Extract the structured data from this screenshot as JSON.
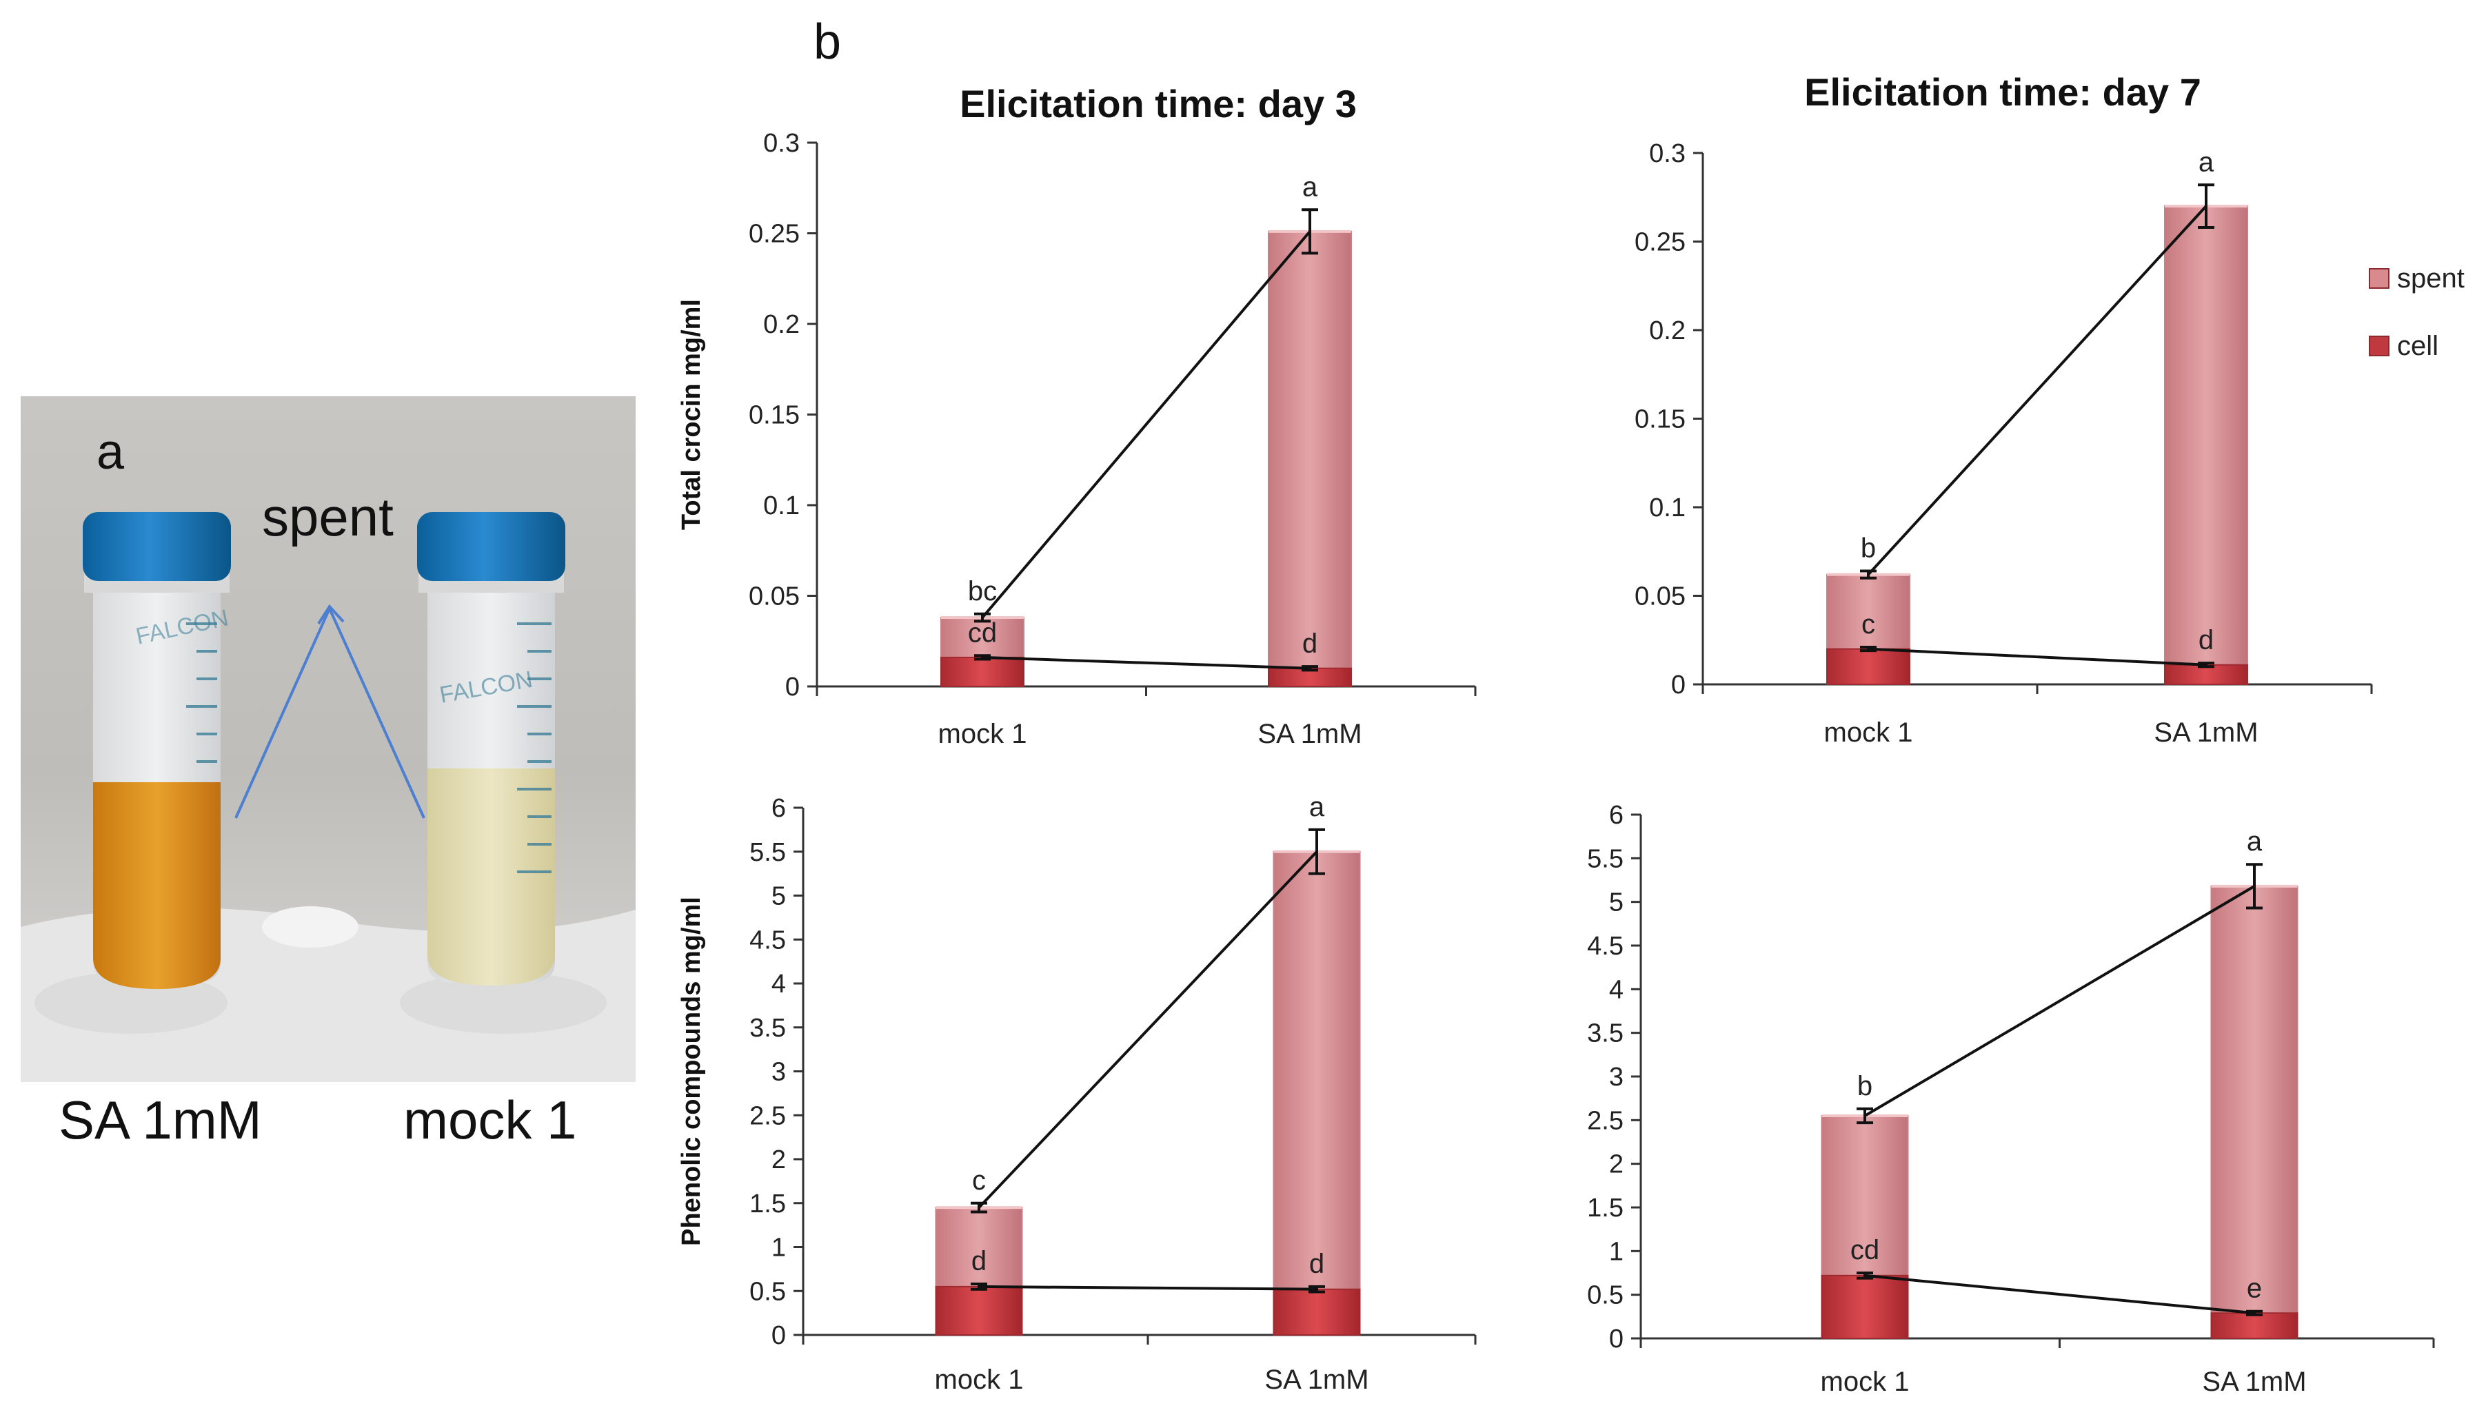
{
  "photo": {
    "panel_letter": "a",
    "spent_label": "spent",
    "left_tube_label": "SA 1mM",
    "right_tube_label": "mock 1",
    "tube_brand_text": "FALCON"
  },
  "panel_b_letter": "b",
  "legend": {
    "entries": [
      {
        "name": "spent",
        "color": "#d98a8f"
      },
      {
        "name": "cell",
        "color": "#c0393f"
      }
    ]
  },
  "chart_data": [
    {
      "type": "bar",
      "stacked": true,
      "title": "Elicitation time: day 3",
      "ylabel": "Total crocin mg/ml",
      "categories": [
        "mock 1",
        "SA 1mM"
      ],
      "ylim": [
        0,
        0.3
      ],
      "yticks": [
        "0",
        "0.05",
        "0.1",
        "0.15",
        "0.2",
        "0.25",
        "0.3"
      ],
      "series": [
        {
          "name": "cell",
          "values": [
            0.016,
            0.01
          ],
          "error": [
            0.001,
            0.001
          ],
          "letters": [
            "cd",
            "d"
          ]
        },
        {
          "name": "spent",
          "values": [
            0.038,
            0.251
          ],
          "error": [
            0.002,
            0.012
          ],
          "letters": [
            "bc",
            "a"
          ]
        }
      ]
    },
    {
      "type": "bar",
      "stacked": true,
      "title": "Elicitation time: day 7",
      "ylabel": "",
      "categories": [
        "mock 1",
        "SA 1mM"
      ],
      "ylim": [
        0,
        0.3
      ],
      "yticks": [
        "0",
        "0.05",
        "0.1",
        "0.15",
        "0.2",
        "0.25",
        "0.3"
      ],
      "series": [
        {
          "name": "cell",
          "values": [
            0.02,
            0.011
          ],
          "error": [
            0.001,
            0.001
          ],
          "letters": [
            "c",
            "d"
          ]
        },
        {
          "name": "spent",
          "values": [
            0.062,
            0.27
          ],
          "error": [
            0.002,
            0.012
          ],
          "letters": [
            "b",
            "a"
          ]
        }
      ]
    },
    {
      "type": "bar",
      "stacked": true,
      "title": "",
      "ylabel": "Phenolic compounds mg/ml",
      "categories": [
        "mock 1",
        "SA 1mM"
      ],
      "ylim": [
        0,
        6
      ],
      "yticks": [
        "0",
        "0.5",
        "1",
        "1.5",
        "2",
        "2.5",
        "3",
        "3.5",
        "4",
        "4.5",
        "5",
        "5.5",
        "6"
      ],
      "series": [
        {
          "name": "cell",
          "values": [
            0.55,
            0.52
          ],
          "error": [
            0.03,
            0.03
          ],
          "letters": [
            "d",
            "d"
          ]
        },
        {
          "name": "spent",
          "values": [
            1.45,
            5.5
          ],
          "error": [
            0.05,
            0.25
          ],
          "letters": [
            "c",
            "a"
          ]
        }
      ]
    },
    {
      "type": "bar",
      "stacked": true,
      "title": "",
      "ylabel": "",
      "categories": [
        "mock 1",
        "SA 1mM"
      ],
      "ylim": [
        0,
        6
      ],
      "yticks": [
        "0",
        "0.5",
        "1",
        "1.5",
        "2",
        "2.5",
        "3",
        "3.5",
        "4",
        "4.5",
        "5",
        "5.5",
        "6"
      ],
      "series": [
        {
          "name": "cell",
          "values": [
            0.72,
            0.29
          ],
          "error": [
            0.03,
            0.02
          ],
          "letters": [
            "cd",
            "e"
          ]
        },
        {
          "name": "spent",
          "values": [
            2.55,
            5.18
          ],
          "error": [
            0.08,
            0.25
          ],
          "letters": [
            "b",
            "a"
          ]
        }
      ]
    }
  ]
}
